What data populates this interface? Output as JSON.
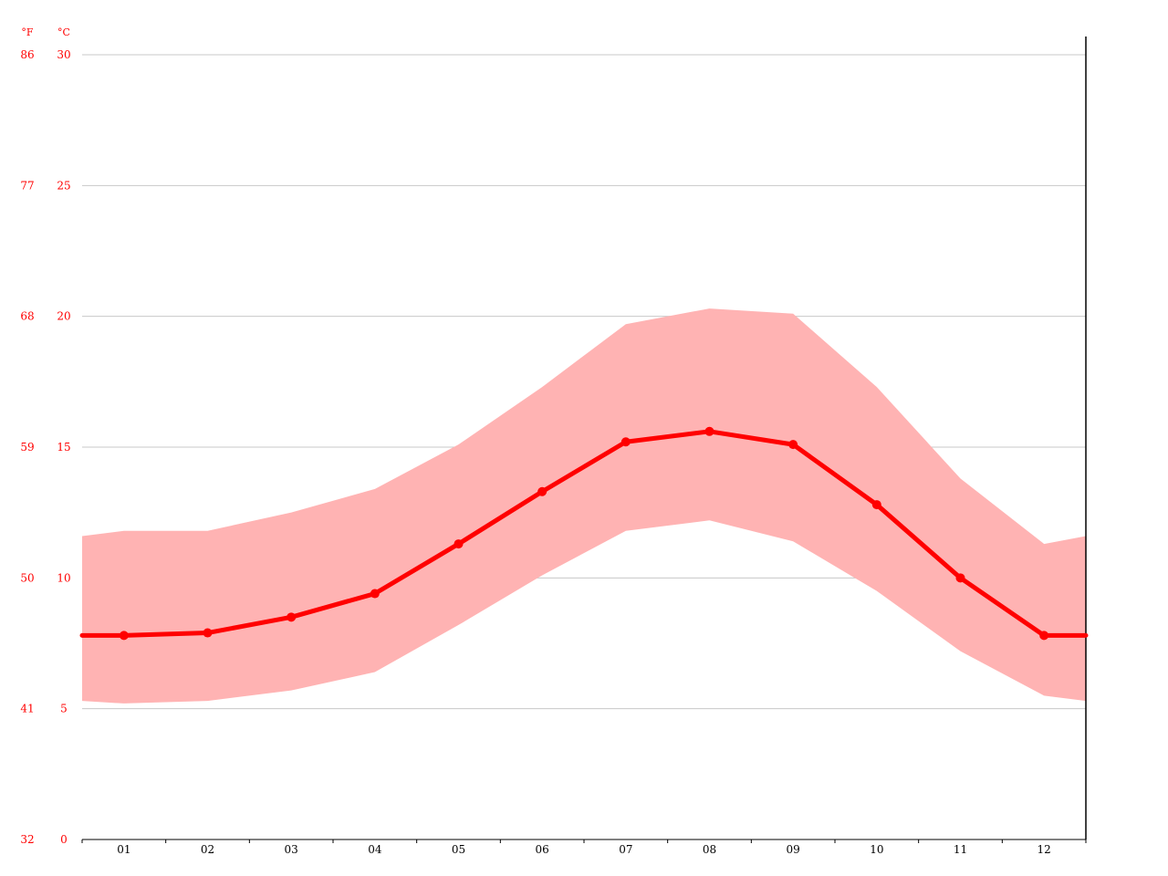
{
  "chart_data": {
    "type": "line",
    "categories": [
      "01",
      "02",
      "03",
      "04",
      "05",
      "06",
      "07",
      "08",
      "09",
      "10",
      "11",
      "12"
    ],
    "x_extended": true,
    "series": [
      {
        "values": [
          7.8,
          7.9,
          8.5,
          9.4,
          11.3,
          13.3,
          15.2,
          15.6,
          15.1,
          12.8,
          10.0,
          7.8
        ]
      }
    ],
    "band": {
      "upper": [
        11.8,
        11.8,
        12.5,
        13.4,
        15.1,
        17.3,
        19.7,
        20.3,
        20.1,
        17.3,
        13.8,
        11.3
      ],
      "lower": [
        5.2,
        5.3,
        5.7,
        6.4,
        8.2,
        10.1,
        11.8,
        12.2,
        11.4,
        9.5,
        7.2,
        5.5
      ],
      "upper_edges": [
        11.6,
        11.6
      ],
      "lower_edges": [
        5.3,
        5.3
      ]
    },
    "ylim": [
      0,
      30
    ],
    "y_ticks_c": [
      "0",
      "5",
      "10",
      "15",
      "20",
      "25",
      "30"
    ],
    "y_ticks_f": [
      "32",
      "41",
      "50",
      "59",
      "68",
      "77",
      "86"
    ],
    "y_unit_f": "°F",
    "y_unit_c": "°C",
    "grid": true,
    "colors": {
      "line": "#ff0000",
      "band": "#ffb3b3",
      "tick_text": "#ff0000",
      "grid": "#c8c8c8",
      "axis": "#000000"
    }
  }
}
